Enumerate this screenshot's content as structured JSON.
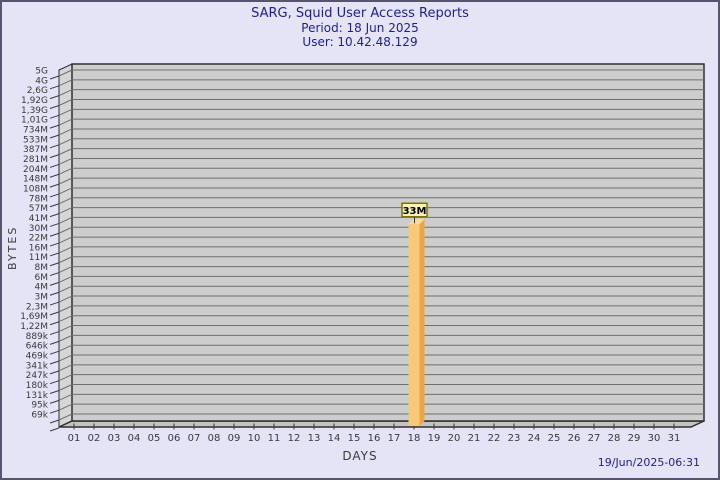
{
  "window": {
    "background_color": "#E4E4F6",
    "border_color": "#55556B"
  },
  "header": {
    "title": "SARG, Squid User Access Reports",
    "period": "Period: 18 Jun 2025",
    "user": "User: 10.42.48.129",
    "text_color": "#1E1E96"
  },
  "footer": {
    "timestamp": "19/Jun/2025-06:31"
  },
  "chart_data": {
    "type": "bar",
    "title": "SARG, Squid User Access Reports",
    "subtitle": [
      "Period: 18 Jun 2025",
      "User: 10.42.48.129"
    ],
    "xlabel": "DAYS",
    "ylabel": "BYTES",
    "x_categories": [
      "01",
      "02",
      "03",
      "04",
      "05",
      "06",
      "07",
      "08",
      "09",
      "10",
      "11",
      "12",
      "13",
      "14",
      "15",
      "16",
      "17",
      "18",
      "19",
      "20",
      "21",
      "22",
      "23",
      "24",
      "25",
      "26",
      "27",
      "28",
      "29",
      "30",
      "31"
    ],
    "y_scale": "log",
    "y_tick_labels": [
      "5G",
      "4G",
      "2,6G",
      "1,92G",
      "1,39G",
      "1,01G",
      "734M",
      "533M",
      "387M",
      "281M",
      "204M",
      "148M",
      "108M",
      "78M",
      "57M",
      "41M",
      "30M",
      "22M",
      "16M",
      "11M",
      "8M",
      "6M",
      "4M",
      "3M",
      "2,3M",
      "1,69M",
      "1,22M",
      "889k",
      "646k",
      "469k",
      "341k",
      "247k",
      "180k",
      "131k",
      "95k",
      "69k"
    ],
    "grid": true,
    "legend": false,
    "bars": [
      {
        "category": "18",
        "label": "33M",
        "value_bytes": 33000000
      }
    ],
    "colors": {
      "bar_front": "#FBC878",
      "bar_side": "#E9A74B",
      "bar_top": "#FDD992",
      "annotation_fill": "#F9F1B5",
      "annotation_border": "#7F7100",
      "annotation_text": "#000000",
      "plot_wall": "#CDCDCD",
      "plot_side_wall": "#D6D6D6",
      "plot_floor": "#C4C4C4",
      "gridline": "#6F6F6F",
      "plot_border": "#2E2E2E",
      "tick_text": "#3A3A3A"
    }
  }
}
